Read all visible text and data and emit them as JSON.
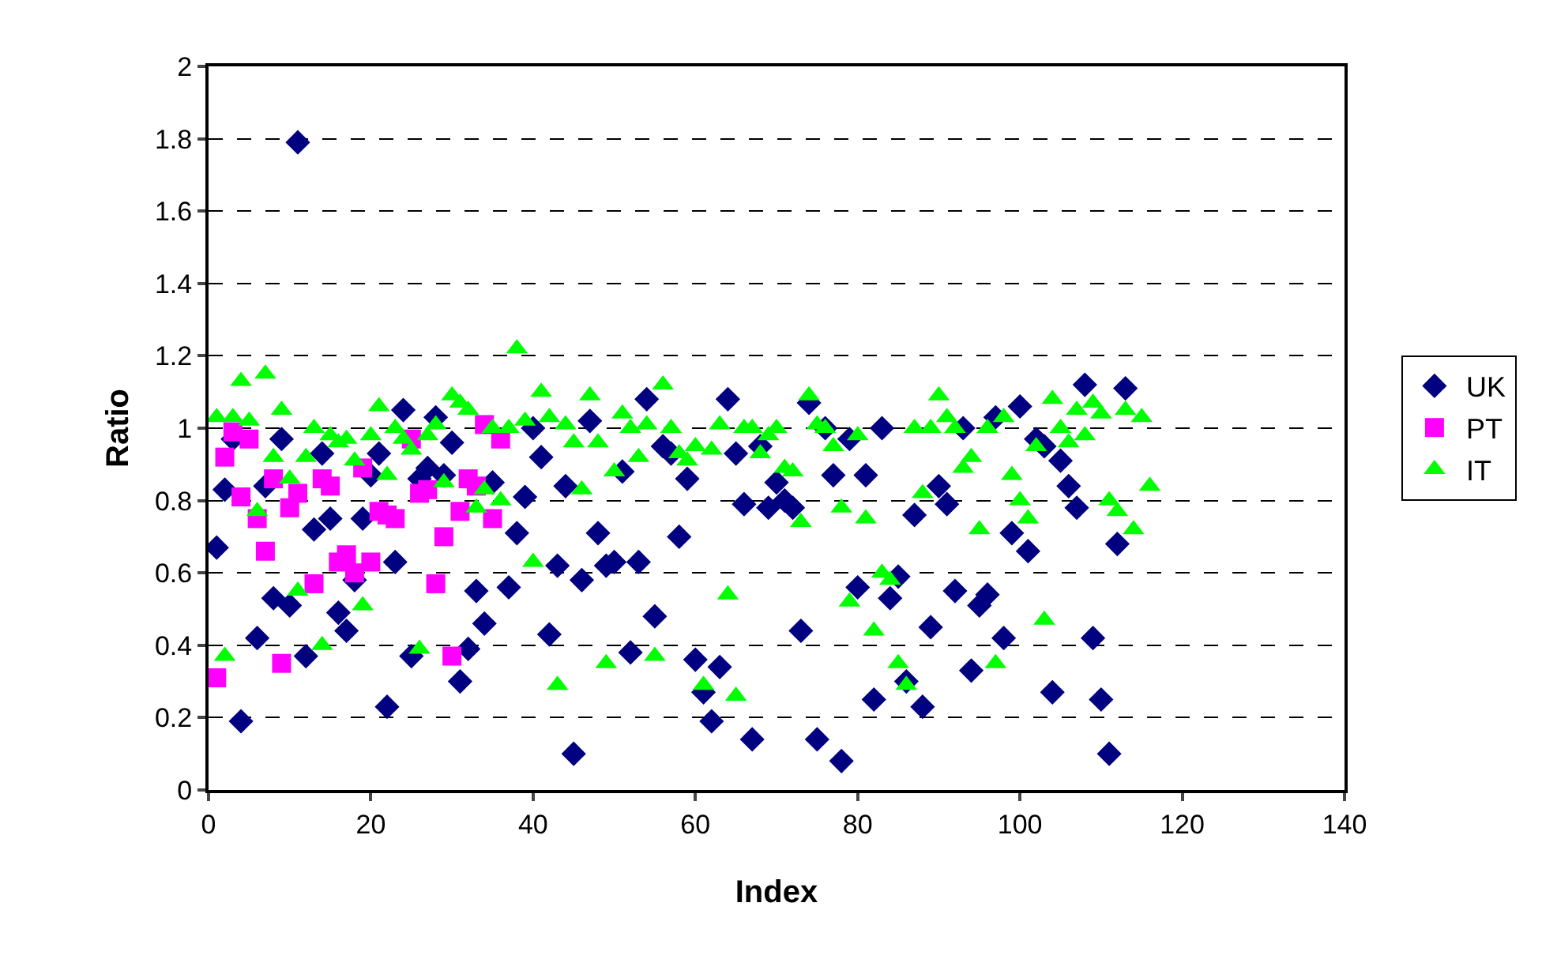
{
  "chart_data": {
    "type": "scatter",
    "xlabel": "Index",
    "ylabel": "Ratio",
    "xlim": [
      0,
      140
    ],
    "xticks": [
      0,
      20,
      40,
      60,
      80,
      100,
      120,
      140
    ],
    "ylim": [
      0,
      2
    ],
    "yticks": [
      0,
      0.2,
      0.4,
      0.6,
      0.8,
      1,
      1.2,
      1.4,
      1.6,
      1.8,
      2
    ],
    "grid": "y",
    "legend": "right",
    "series": [
      {
        "name": "UK",
        "color": "#000080",
        "marker": "diamond",
        "x": [
          1,
          2,
          3,
          4,
          5,
          6,
          7,
          8,
          9,
          10,
          11,
          12,
          13,
          14,
          15,
          16,
          17,
          18,
          19,
          20,
          21,
          22,
          23,
          24,
          25,
          26,
          27,
          28,
          29,
          30,
          31,
          32,
          33,
          34,
          35,
          36,
          37,
          38,
          39,
          40,
          41,
          42,
          43,
          44,
          45,
          46,
          47,
          48,
          49,
          50,
          51,
          52,
          53,
          54,
          55,
          56,
          57,
          58,
          59,
          60,
          61,
          62,
          63,
          64,
          65,
          66,
          67,
          68,
          69,
          70,
          71,
          72,
          73,
          74,
          75,
          76,
          77,
          78,
          79,
          80,
          81,
          82,
          83,
          84,
          85,
          86,
          87,
          88,
          89,
          90,
          91,
          92,
          93,
          94,
          95,
          96,
          97,
          98,
          99,
          100,
          101,
          102,
          103,
          104,
          105,
          106,
          107,
          108,
          109,
          110,
          111,
          112,
          113
        ],
        "values": [
          0.67,
          0.83,
          0.97,
          0.19,
          null,
          0.42,
          0.84,
          0.53,
          0.97,
          0.51,
          1.79,
          0.37,
          0.72,
          0.93,
          0.75,
          0.49,
          0.44,
          0.58,
          0.75,
          0.87,
          0.93,
          0.23,
          0.63,
          1.05,
          0.37,
          0.86,
          0.89,
          1.03,
          0.87,
          0.96,
          0.3,
          0.39,
          0.55,
          0.46,
          0.85,
          null,
          0.56,
          0.71,
          0.81,
          1.0,
          0.92,
          0.43,
          0.62,
          0.84,
          0.1,
          0.58,
          1.02,
          0.71,
          0.62,
          0.63,
          0.88,
          0.38,
          0.63,
          1.08,
          0.48,
          0.95,
          0.93,
          0.7,
          0.86,
          0.36,
          0.27,
          0.19,
          0.34,
          1.08,
          0.93,
          0.79,
          0.14,
          0.95,
          0.78,
          0.85,
          0.8,
          0.78,
          0.44,
          1.07,
          0.14,
          1.0,
          0.87,
          0.08,
          0.97,
          0.56,
          0.87,
          0.25,
          1.0,
          0.53,
          0.59,
          0.3,
          0.76,
          0.23,
          0.45,
          0.84,
          0.79,
          0.55,
          1.0,
          0.33,
          0.51,
          0.54,
          1.03,
          0.42,
          0.71,
          1.06,
          0.66,
          0.97,
          0.95,
          0.27,
          0.91,
          0.84,
          0.78,
          1.12,
          0.42,
          0.25,
          0.1,
          0.68,
          1.11
        ]
      },
      {
        "name": "PT",
        "color": "#ff00ff",
        "marker": "square",
        "x": [
          1,
          2,
          3,
          4,
          5,
          6,
          7,
          8,
          9,
          10,
          11,
          12,
          13,
          14,
          15,
          16,
          17,
          18,
          19,
          20,
          21,
          22,
          23,
          24,
          25,
          26,
          27,
          28,
          29,
          30,
          31,
          32,
          33,
          34,
          35,
          36
        ],
        "values": [
          0.31,
          0.92,
          0.99,
          0.81,
          0.97,
          0.75,
          0.66,
          0.86,
          0.35,
          0.78,
          0.82,
          null,
          0.57,
          0.86,
          0.84,
          0.63,
          0.65,
          0.6,
          0.89,
          0.63,
          0.77,
          0.76,
          0.75,
          null,
          0.97,
          0.82,
          0.83,
          0.57,
          0.7,
          0.37,
          0.77,
          0.86,
          0.84,
          1.01,
          0.75,
          0.97
        ]
      },
      {
        "name": "IT",
        "color": "#00ff00",
        "marker": "triangle",
        "x": [
          1,
          2,
          3,
          4,
          5,
          6,
          7,
          8,
          9,
          10,
          11,
          12,
          13,
          14,
          15,
          16,
          17,
          18,
          19,
          20,
          21,
          22,
          23,
          24,
          25,
          26,
          27,
          28,
          29,
          30,
          31,
          32,
          33,
          34,
          35,
          36,
          37,
          38,
          39,
          40,
          41,
          42,
          43,
          44,
          45,
          46,
          47,
          48,
          49,
          50,
          51,
          52,
          53,
          54,
          55,
          56,
          57,
          58,
          59,
          60,
          61,
          62,
          63,
          64,
          65,
          66,
          67,
          68,
          69,
          70,
          71,
          72,
          73,
          74,
          75,
          76,
          77,
          78,
          79,
          80,
          81,
          82,
          83,
          84,
          85,
          86,
          87,
          88,
          89,
          90,
          91,
          92,
          93,
          94,
          95,
          96,
          97,
          98,
          99,
          100,
          101,
          102,
          103,
          104,
          105,
          106,
          107,
          108,
          109,
          110,
          111,
          112,
          113,
          114,
          115,
          116
        ],
        "values": [
          1.03,
          0.37,
          1.03,
          1.13,
          1.02,
          0.77,
          1.15,
          0.92,
          1.05,
          0.86,
          0.55,
          0.92,
          1.0,
          0.4,
          0.98,
          0.96,
          0.97,
          0.91,
          0.51,
          0.98,
          1.06,
          0.87,
          1.0,
          0.97,
          0.94,
          0.39,
          0.98,
          1.01,
          0.85,
          1.09,
          1.07,
          1.05,
          0.78,
          0.83,
          1.0,
          0.8,
          1.0,
          1.22,
          1.02,
          0.63,
          1.1,
          1.03,
          0.29,
          1.01,
          0.96,
          0.83,
          1.09,
          0.96,
          0.35,
          0.88,
          1.04,
          1.0,
          0.92,
          1.01,
          0.37,
          1.12,
          1.0,
          0.93,
          0.91,
          0.95,
          0.29,
          0.94,
          1.01,
          0.54,
          0.26,
          1.0,
          1.0,
          0.93,
          0.98,
          1.0,
          0.89,
          0.88,
          0.74,
          1.09,
          1.01,
          1.0,
          0.95,
          0.78,
          0.52,
          0.98,
          0.75,
          0.44,
          0.6,
          0.58,
          0.35,
          0.29,
          1.0,
          0.82,
          1.0,
          1.09,
          1.03,
          1.0,
          0.89,
          0.92,
          0.72,
          1.0,
          0.35,
          1.03,
          0.87,
          0.8,
          0.75,
          0.95,
          0.47,
          1.08,
          1.0,
          0.96,
          1.05,
          0.98,
          1.07,
          1.04,
          0.8,
          0.77,
          1.05,
          0.72,
          1.03,
          0.84
        ]
      }
    ]
  }
}
